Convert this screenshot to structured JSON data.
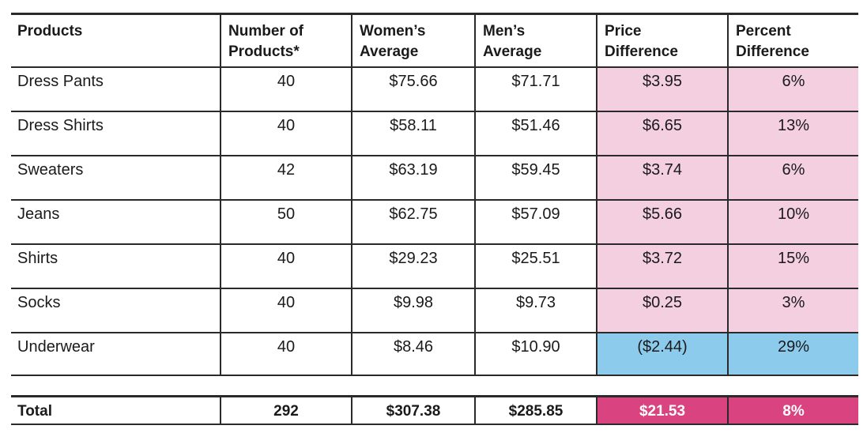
{
  "table": {
    "headers": [
      [
        "Products"
      ],
      [
        "Number of",
        "Products*"
      ],
      [
        "Women’s",
        "Average"
      ],
      [
        "Men’s",
        "Average"
      ],
      [
        "Price",
        "Difference"
      ],
      [
        "Percent",
        "Difference"
      ]
    ],
    "rows": [
      {
        "product": "Dress Pants",
        "count": "40",
        "women": "$75.66",
        "men": "$71.71",
        "price_diff": "$3.95",
        "pct_diff": "6%",
        "highlight": "pink"
      },
      {
        "product": "Dress Shirts",
        "count": "40",
        "women": "$58.11",
        "men": "$51.46",
        "price_diff": "$6.65",
        "pct_diff": "13%",
        "highlight": "pink"
      },
      {
        "product": "Sweaters",
        "count": "42",
        "women": "$63.19",
        "men": "$59.45",
        "price_diff": "$3.74",
        "pct_diff": "6%",
        "highlight": "pink"
      },
      {
        "product": "Jeans",
        "count": "50",
        "women": "$62.75",
        "men": "$57.09",
        "price_diff": "$5.66",
        "pct_diff": "10%",
        "highlight": "pink"
      },
      {
        "product": "Shirts",
        "count": "40",
        "women": "$29.23",
        "men": "$25.51",
        "price_diff": "$3.72",
        "pct_diff": "15%",
        "highlight": "pink"
      },
      {
        "product": "Socks",
        "count": "40",
        "women": "$9.98",
        "men": "$9.73",
        "price_diff": "$0.25",
        "pct_diff": "3%",
        "highlight": "pink"
      },
      {
        "product": "Underwear",
        "count": "40",
        "women": "$8.46",
        "men": "$10.90",
        "price_diff": "($2.44)",
        "pct_diff": "29%",
        "highlight": "blue"
      }
    ],
    "total": {
      "product": "Total",
      "count": "292",
      "women": "$307.38",
      "men": "$285.85",
      "price_diff": "$21.53",
      "pct_diff": "8%"
    }
  },
  "colors": {
    "pink": "#f3cfe0",
    "blue": "#8ccbec",
    "magenta": "#d9437f"
  }
}
